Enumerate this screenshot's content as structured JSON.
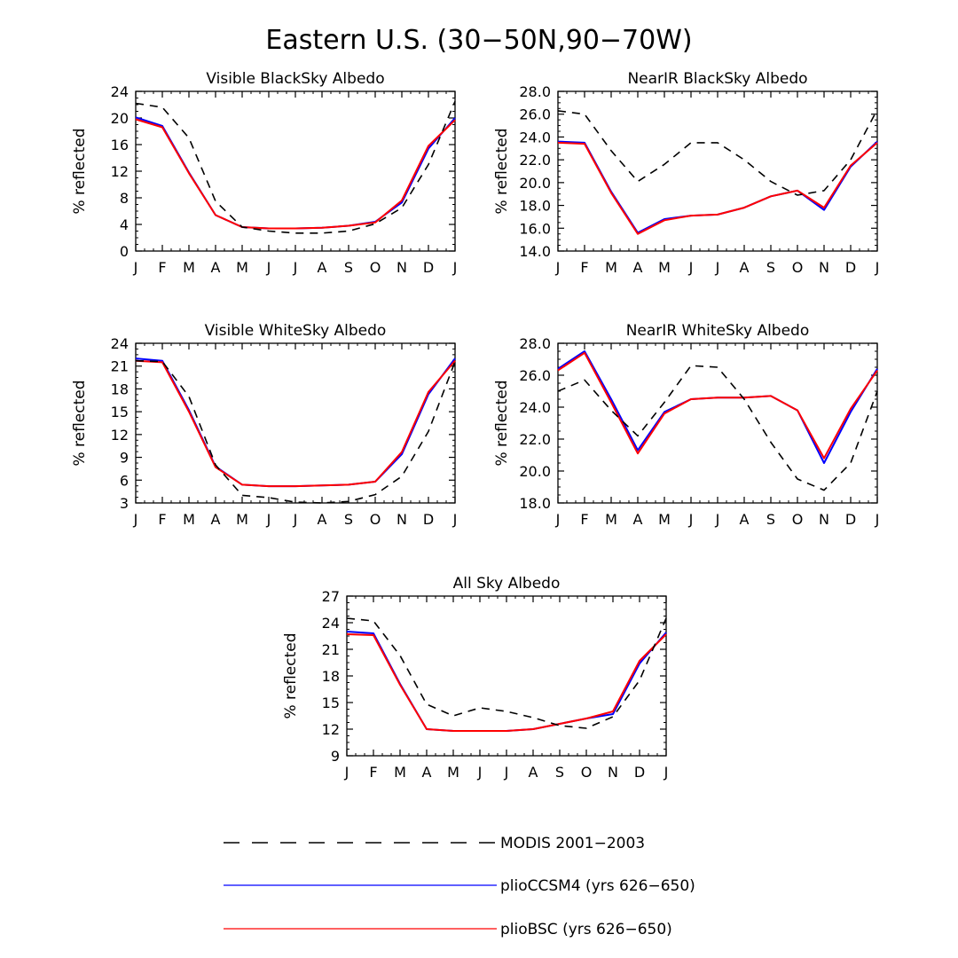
{
  "figure_title": "Eastern U.S. (30−50N,90−70W)",
  "legend": [
    {
      "label": "MODIS 2001−2003",
      "color": "#000000",
      "dash": true
    },
    {
      "label": "plioCCSM4 (yrs 626−650)",
      "color": "#0000ff",
      "dash": false
    },
    {
      "label": "plioBSC (yrs 626−650)",
      "color": "#ff0000",
      "dash": false
    }
  ],
  "chart_data": [
    {
      "type": "line",
      "title": "Visible BlackSky Albedo",
      "xlabel": "",
      "ylabel": "% reflected",
      "categories": [
        "J",
        "F",
        "M",
        "A",
        "M",
        "J",
        "J",
        "A",
        "S",
        "O",
        "N",
        "D",
        "J"
      ],
      "ylim": [
        0,
        24
      ],
      "yticks": [
        0,
        4,
        8,
        12,
        16,
        20,
        24
      ],
      "ytick_decimals": 0,
      "series": [
        {
          "name": "MODIS 2001−2003",
          "color": "#000000",
          "dash": true,
          "values": [
            22.2,
            21.6,
            17.0,
            7.5,
            3.6,
            3.0,
            2.7,
            2.7,
            3.0,
            4.1,
            6.5,
            13.0,
            22.5
          ]
        },
        {
          "name": "plioCCSM4 (yrs 626−650)",
          "color": "#0000ff",
          "dash": false,
          "values": [
            20.1,
            18.8,
            11.8,
            5.4,
            3.6,
            3.4,
            3.4,
            3.5,
            3.8,
            4.4,
            7.3,
            15.4,
            20.0
          ]
        },
        {
          "name": "plioBSC (yrs 626−650)",
          "color": "#ff0000",
          "dash": false,
          "values": [
            19.8,
            18.6,
            11.7,
            5.4,
            3.6,
            3.4,
            3.4,
            3.5,
            3.8,
            4.3,
            7.6,
            15.8,
            19.7
          ]
        }
      ]
    },
    {
      "type": "line",
      "title": "NearIR BlackSky Albedo",
      "xlabel": "",
      "ylabel": "% reflected",
      "categories": [
        "J",
        "F",
        "M",
        "A",
        "M",
        "J",
        "J",
        "A",
        "S",
        "O",
        "N",
        "D",
        "J"
      ],
      "ylim": [
        14,
        28
      ],
      "yticks": [
        14,
        16,
        18,
        20,
        22,
        24,
        26,
        28
      ],
      "ytick_decimals": 1,
      "series": [
        {
          "name": "MODIS 2001−2003",
          "color": "#000000",
          "dash": true,
          "values": [
            26.3,
            26.0,
            22.8,
            20.1,
            21.6,
            23.5,
            23.5,
            22.0,
            20.1,
            18.9,
            19.3,
            22.0,
            26.4
          ]
        },
        {
          "name": "plioCCSM4 (yrs 626−650)",
          "color": "#0000ff",
          "dash": false,
          "values": [
            23.6,
            23.5,
            19.2,
            15.6,
            16.8,
            17.1,
            17.2,
            17.8,
            18.8,
            19.3,
            17.6,
            21.4,
            23.6
          ]
        },
        {
          "name": "plioBSC (yrs 626−650)",
          "color": "#ff0000",
          "dash": false,
          "values": [
            23.5,
            23.4,
            19.1,
            15.5,
            16.7,
            17.1,
            17.2,
            17.8,
            18.8,
            19.3,
            17.8,
            21.5,
            23.5
          ]
        }
      ]
    },
    {
      "type": "line",
      "title": "Visible WhiteSky Albedo",
      "xlabel": "",
      "ylabel": "% reflected",
      "categories": [
        "J",
        "F",
        "M",
        "A",
        "M",
        "J",
        "J",
        "A",
        "S",
        "O",
        "N",
        "D",
        "J"
      ],
      "ylim": [
        3,
        24
      ],
      "yticks": [
        3,
        6,
        9,
        12,
        15,
        18,
        21,
        24
      ],
      "ytick_decimals": 0,
      "series": [
        {
          "name": "MODIS 2001−2003",
          "color": "#000000",
          "dash": true,
          "values": [
            21.7,
            21.6,
            17.0,
            8.0,
            4.0,
            3.7,
            3.1,
            3.0,
            3.2,
            4.1,
            6.5,
            12.4,
            21.6
          ]
        },
        {
          "name": "plioCCSM4 (yrs 626−650)",
          "color": "#0000ff",
          "dash": false,
          "values": [
            22.0,
            21.7,
            15.2,
            7.8,
            5.4,
            5.2,
            5.2,
            5.3,
            5.4,
            5.8,
            9.4,
            17.3,
            22.0
          ]
        },
        {
          "name": "plioBSC (yrs 626−650)",
          "color": "#ff0000",
          "dash": false,
          "values": [
            21.7,
            21.5,
            15.0,
            7.7,
            5.4,
            5.2,
            5.2,
            5.3,
            5.4,
            5.8,
            9.7,
            17.6,
            21.7
          ]
        }
      ]
    },
    {
      "type": "line",
      "title": "NearIR WhiteSky Albedo",
      "xlabel": "",
      "ylabel": "% reflected",
      "categories": [
        "J",
        "F",
        "M",
        "A",
        "M",
        "J",
        "J",
        "A",
        "S",
        "O",
        "N",
        "D",
        "J"
      ],
      "ylim": [
        18,
        28
      ],
      "yticks": [
        18,
        20,
        22,
        24,
        26,
        28
      ],
      "ytick_decimals": 1,
      "series": [
        {
          "name": "MODIS 2001−2003",
          "color": "#000000",
          "dash": true,
          "values": [
            25.0,
            25.7,
            23.8,
            22.2,
            24.3,
            26.6,
            26.5,
            24.5,
            21.8,
            19.5,
            18.8,
            20.5,
            25.0
          ]
        },
        {
          "name": "plioCCSM4 (yrs 626−650)",
          "color": "#0000ff",
          "dash": false,
          "values": [
            26.4,
            27.5,
            24.5,
            21.3,
            23.7,
            24.5,
            24.6,
            24.6,
            24.7,
            23.8,
            20.5,
            23.7,
            26.4
          ]
        },
        {
          "name": "plioBSC (yrs 626−650)",
          "color": "#ff0000",
          "dash": false,
          "values": [
            26.3,
            27.4,
            24.3,
            21.1,
            23.6,
            24.5,
            24.6,
            24.6,
            24.7,
            23.8,
            20.8,
            23.9,
            26.3
          ]
        }
      ]
    },
    {
      "type": "line",
      "title": "All Sky Albedo",
      "xlabel": "",
      "ylabel": "% reflected",
      "categories": [
        "J",
        "F",
        "M",
        "A",
        "M",
        "J",
        "J",
        "A",
        "S",
        "O",
        "N",
        "D",
        "J"
      ],
      "ylim": [
        9,
        27
      ],
      "yticks": [
        9,
        12,
        15,
        18,
        21,
        24,
        27
      ],
      "ytick_decimals": 0,
      "series": [
        {
          "name": "MODIS 2001−2003",
          "color": "#000000",
          "dash": true,
          "values": [
            24.5,
            24.2,
            20.3,
            14.8,
            13.5,
            14.4,
            14.0,
            13.3,
            12.4,
            12.1,
            13.4,
            17.5,
            24.5
          ]
        },
        {
          "name": "plioCCSM4 (yrs 626−650)",
          "color": "#0000ff",
          "dash": false,
          "values": [
            23.0,
            22.8,
            17.1,
            12.0,
            11.8,
            11.8,
            11.8,
            12.0,
            12.6,
            13.2,
            13.7,
            19.4,
            22.9
          ]
        },
        {
          "name": "plioBSC (yrs 626−650)",
          "color": "#ff0000",
          "dash": false,
          "values": [
            22.7,
            22.6,
            17.0,
            12.0,
            11.8,
            11.8,
            11.8,
            12.0,
            12.6,
            13.2,
            14.0,
            19.7,
            22.7
          ]
        }
      ]
    }
  ]
}
